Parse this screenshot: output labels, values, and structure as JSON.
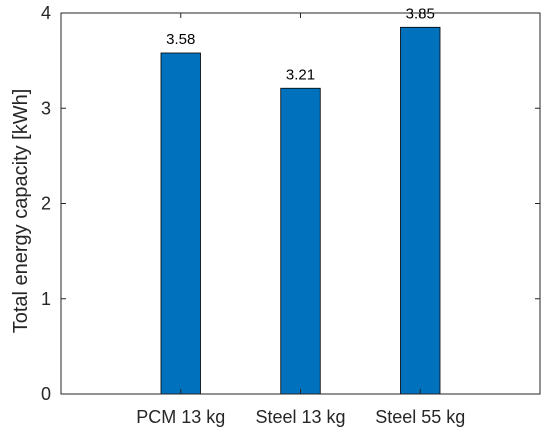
{
  "chart_data": {
    "type": "bar",
    "categories": [
      "PCM 13 kg",
      "Steel 13 kg",
      "Steel 55 kg"
    ],
    "values": [
      3.58,
      3.21,
      3.85
    ],
    "data_labels": [
      "3.58",
      "3.21",
      "3.85"
    ],
    "title": "",
    "xlabel": "",
    "ylabel": "Total energy capacity [kWh]",
    "ylim": [
      0,
      4
    ],
    "yticks": [
      0,
      1,
      2,
      3,
      4
    ],
    "grid": false,
    "colors": {
      "bar": "#0072BD",
      "bar_edge": "#000000",
      "axis": "#262626"
    }
  }
}
